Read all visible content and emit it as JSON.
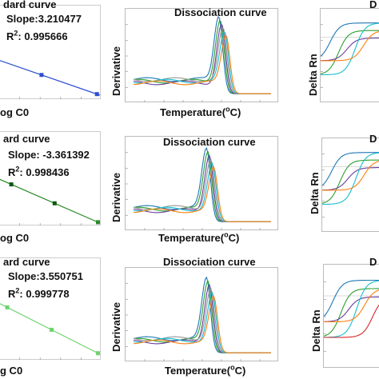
{
  "rows": [
    {
      "std": {
        "title": "dard curve",
        "slope": "Slope:3.210477",
        "r2_prefix": "R",
        "r2_sup": "2",
        "r2_value": ": 0.995666",
        "xlabel": "og C0",
        "color": "#2f4fd0",
        "points": [
          [
            1,
            0.62
          ],
          [
            2,
            0.34
          ]
        ]
      },
      "diss": {
        "title": "Dissociation curve",
        "ylabel": "Derivative",
        "xlabel_prefix": "Temperature(",
        "xlabel_sup": "o",
        "xlabel_suffix": "C)",
        "peak_x": 0.63,
        "peak_h": 0.92,
        "colors": [
          "#1f77b4",
          "#2ca02c",
          "#6a3d9a",
          "#999999",
          "#17becf",
          "#ff7f0e"
        ]
      },
      "amp": {
        "title": "D",
        "ylabel": "Delta Rn",
        "colors": [
          "#1f77b4",
          "#2ca02c",
          "#6a3d9a",
          "#17becf",
          "#ff7f0e"
        ]
      }
    },
    {
      "std": {
        "title": "ard curve",
        "slope": "Slope: -3.361392",
        "r2_prefix": "R",
        "r2_sup": "2",
        "r2_value": ": 0.998436",
        "xlabel": "og C0",
        "color": "#2a8a2a",
        "points": [
          [
            1,
            0.3
          ],
          [
            2,
            0.5
          ]
        ]
      },
      "diss": {
        "title": "Dissociation curve",
        "ylabel": "Derivative",
        "xlabel_prefix": "Temperature(",
        "xlabel_sup": "o",
        "xlabel_suffix": "C)",
        "peak_x": 0.55,
        "peak_h": 0.88,
        "colors": [
          "#1f77b4",
          "#2ca02c",
          "#6a3d9a",
          "#999999",
          "#17becf",
          "#ff7f0e"
        ]
      },
      "amp": {
        "title": "D",
        "ylabel": "Delta Rn",
        "colors": [
          "#1f77b4",
          "#2ca02c",
          "#6a3d9a",
          "#17becf",
          "#ff7f0e"
        ]
      }
    },
    {
      "std": {
        "title": "ard curve",
        "slope": "Slope:3.550751",
        "r2_prefix": "R",
        "r2_sup": "2",
        "r2_value": ": 0.999778",
        "xlabel": "g C0",
        "color": "#6fd36f",
        "points": [
          [
            0,
            0.35
          ],
          [
            1,
            0.58
          ]
        ]
      },
      "diss": {
        "title": "Dissociation curve",
        "ylabel": "Derivative",
        "xlabel_prefix": "Temperature(",
        "xlabel_sup": "o",
        "xlabel_suffix": "C)",
        "peak_x": 0.55,
        "peak_h": 0.9,
        "colors": [
          "#1f77b4",
          "#2ca02c",
          "#6a3d9a",
          "#999999",
          "#17becf",
          "#ff7f0e"
        ]
      },
      "amp": {
        "title": "D",
        "ylabel": "Delta Rn",
        "colors": [
          "#1f77b4",
          "#2ca02c",
          "#6a3d9a",
          "#17becf",
          "#ff7f0e",
          "#d62728"
        ]
      }
    }
  ],
  "chart_data": [
    {
      "type": "scatter",
      "title": "dard curve",
      "xlabel": "og C0",
      "slope": 3.210477,
      "r2": 0.995666
    },
    {
      "type": "line",
      "title": "Dissociation curve",
      "xlabel": "Temperature(oC)",
      "ylabel": "Derivative"
    },
    {
      "type": "line",
      "title": "D",
      "ylabel": "Delta Rn"
    },
    {
      "type": "scatter",
      "title": "ard curve",
      "xlabel": "og C0",
      "slope": -3.361392,
      "r2": 0.998436
    },
    {
      "type": "line",
      "title": "Dissociation curve",
      "xlabel": "Temperature(oC)",
      "ylabel": "Derivative"
    },
    {
      "type": "line",
      "title": "D",
      "ylabel": "Delta Rn"
    },
    {
      "type": "scatter",
      "title": "ard curve",
      "xlabel": "g C0",
      "slope": 3.550751,
      "r2": 0.999778
    },
    {
      "type": "line",
      "title": "Dissociation curve",
      "xlabel": "Temperature(oC)",
      "ylabel": "Derivative"
    },
    {
      "type": "line",
      "title": "D",
      "ylabel": "Delta Rn"
    }
  ]
}
